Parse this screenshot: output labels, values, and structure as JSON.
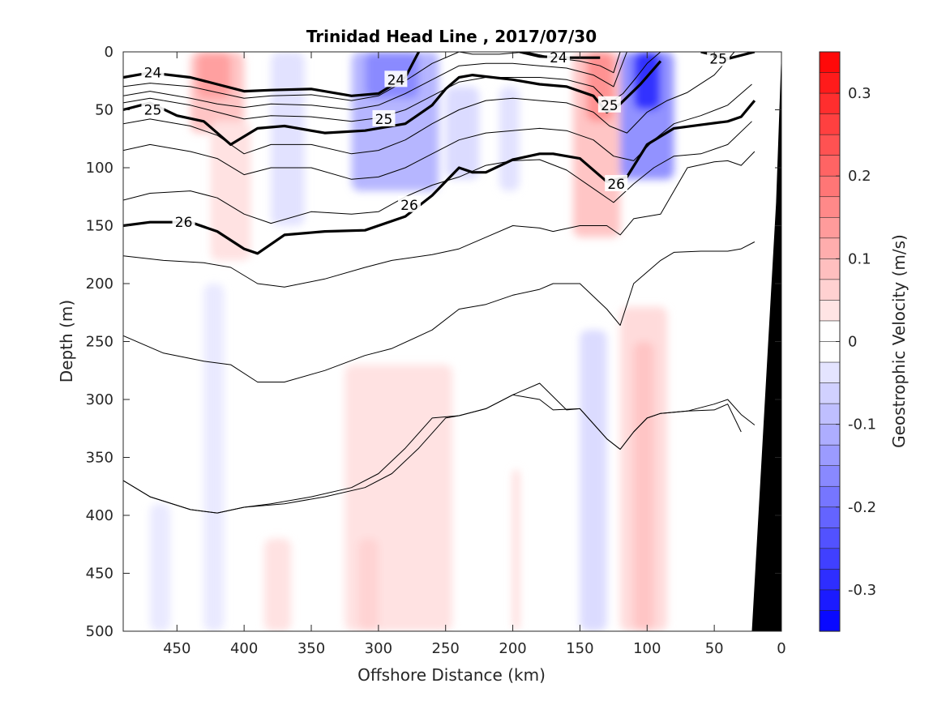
{
  "chart_data": {
    "type": "contour",
    "title": "Trinidad Head Line , 2017/07/30",
    "xlabel": "Offshore Distance (km)",
    "ylabel": "Depth (m)",
    "xlim": [
      490,
      0
    ],
    "x_reversed": true,
    "ylim": [
      0,
      500
    ],
    "y_reversed": true,
    "xticks": [
      "450",
      "400",
      "350",
      "300",
      "250",
      "200",
      "150",
      "100",
      "50",
      "0"
    ],
    "yticks": [
      "0",
      "50",
      "100",
      "150",
      "200",
      "250",
      "300",
      "350",
      "400",
      "450",
      "500"
    ],
    "colorbar": {
      "label": "Geostrophic Velocity (m/s)",
      "range": [
        -0.35,
        0.35
      ],
      "step": 0.025,
      "ticks": [
        "0.3",
        "0.2",
        "0.1",
        "0",
        "-0.1",
        "-0.2",
        "-0.3"
      ],
      "colors": {
        "positive": "#ff0000",
        "negative": "#0000ff",
        "zero": "#ffffff"
      }
    },
    "velocity_patches": [
      {
        "x": [
          440,
          400
        ],
        "depth": [
          0,
          70
        ],
        "velocity": 0.08
      },
      {
        "x": [
          435,
          410
        ],
        "depth": [
          0,
          40
        ],
        "velocity": 0.13
      },
      {
        "x": [
          425,
          395
        ],
        "depth": [
          60,
          180
        ],
        "velocity": 0.04
      },
      {
        "x": [
          380,
          355
        ],
        "depth": [
          0,
          150
        ],
        "velocity": -0.04
      },
      {
        "x": [
          320,
          255
        ],
        "depth": [
          0,
          120
        ],
        "velocity": -0.1
      },
      {
        "x": [
          310,
          270
        ],
        "depth": [
          0,
          40
        ],
        "velocity": -0.16
      },
      {
        "x": [
          250,
          225
        ],
        "depth": [
          30,
          110
        ],
        "velocity": -0.05
      },
      {
        "x": [
          210,
          195
        ],
        "depth": [
          30,
          120
        ],
        "velocity": -0.04
      },
      {
        "x": [
          155,
          120
        ],
        "depth": [
          0,
          160
        ],
        "velocity": 0.08
      },
      {
        "x": [
          145,
          125
        ],
        "depth": [
          0,
          60
        ],
        "velocity": 0.15
      },
      {
        "x": [
          120,
          80
        ],
        "depth": [
          0,
          110
        ],
        "velocity": -0.15
      },
      {
        "x": [
          110,
          90
        ],
        "depth": [
          0,
          50
        ],
        "velocity": -0.28
      },
      {
        "x": [
          470,
          455
        ],
        "depth": [
          390,
          500
        ],
        "velocity": -0.03
      },
      {
        "x": [
          430,
          415
        ],
        "depth": [
          200,
          500
        ],
        "velocity": -0.03
      },
      {
        "x": [
          385,
          365
        ],
        "depth": [
          420,
          500
        ],
        "velocity": 0.04
      },
      {
        "x": [
          325,
          245
        ],
        "depth": [
          270,
          500
        ],
        "velocity": 0.04
      },
      {
        "x": [
          315,
          300
        ],
        "depth": [
          420,
          500
        ],
        "velocity": 0.06
      },
      {
        "x": [
          200,
          195
        ],
        "depth": [
          360,
          500
        ],
        "velocity": 0.05
      },
      {
        "x": [
          150,
          130
        ],
        "depth": [
          240,
          500
        ],
        "velocity": -0.05
      },
      {
        "x": [
          120,
          85
        ],
        "depth": [
          220,
          500
        ],
        "velocity": 0.05
      },
      {
        "x": [
          110,
          95
        ],
        "depth": [
          250,
          500
        ],
        "velocity": 0.08
      }
    ],
    "isopycnals": [
      {
        "level": 24,
        "major": true,
        "x": [
          490,
          470,
          440,
          420,
          400,
          380,
          350,
          320,
          300,
          280,
          270
        ],
        "depth": [
          22,
          18,
          22,
          28,
          34,
          33,
          32,
          38,
          36,
          22,
          0
        ]
      },
      {
        "level": 24,
        "major": true,
        "x": [
          195,
          180,
          160,
          135
        ],
        "depth": [
          0,
          4,
          5,
          5
        ]
      },
      {
        "level": 25,
        "major": true,
        "x": [
          60,
          40,
          20
        ],
        "depth": [
          0,
          6,
          0
        ]
      },
      {
        "level": 25,
        "major": true,
        "x": [
          490,
          470,
          450,
          430,
          410,
          390,
          370,
          340,
          310,
          280,
          260,
          250,
          240,
          230,
          200,
          180,
          160,
          140,
          130,
          120,
          105,
          90
        ],
        "depth": [
          50,
          44,
          55,
          60,
          80,
          66,
          64,
          70,
          68,
          62,
          46,
          32,
          22,
          20,
          24,
          28,
          30,
          38,
          52,
          45,
          28,
          8
        ]
      },
      {
        "level": 26,
        "major": true,
        "x": [
          490,
          470,
          440,
          420,
          400,
          390,
          370,
          340,
          310,
          280,
          260,
          240,
          230,
          220,
          200,
          180,
          170,
          150,
          130,
          115,
          100,
          80,
          60,
          40,
          30,
          20
        ],
        "depth": [
          150,
          147,
          147,
          155,
          170,
          174,
          158,
          155,
          154,
          142,
          124,
          100,
          104,
          104,
          93,
          88,
          88,
          92,
          112,
          108,
          80,
          66,
          63,
          60,
          56,
          42
        ]
      },
      {
        "level": null,
        "major": false,
        "x": [
          490,
          470,
          440,
          420,
          400,
          380,
          350,
          320,
          300,
          280,
          260,
          240,
          230,
          210,
          190,
          170,
          150,
          135,
          125,
          120
        ],
        "depth": [
          30,
          27,
          30,
          35,
          40,
          38,
          37,
          42,
          38,
          25,
          10,
          0,
          2,
          2,
          0,
          5,
          8,
          12,
          18,
          0
        ]
      },
      {
        "level": null,
        "major": false,
        "x": [
          490,
          470,
          440,
          420,
          400,
          380,
          350,
          320,
          300,
          280,
          260,
          240,
          220,
          200,
          180,
          160,
          140,
          125,
          115
        ],
        "depth": [
          38,
          34,
          40,
          45,
          48,
          45,
          46,
          50,
          46,
          36,
          24,
          12,
          10,
          10,
          12,
          14,
          20,
          30,
          0
        ]
      },
      {
        "level": null,
        "major": false,
        "x": [
          490,
          470,
          440,
          420,
          400,
          380,
          350,
          320,
          300,
          280,
          260,
          240,
          220,
          200,
          180,
          160,
          140,
          128,
          118,
          108,
          100,
          90
        ],
        "depth": [
          44,
          40,
          46,
          52,
          58,
          55,
          56,
          60,
          57,
          50,
          38,
          26,
          22,
          22,
          22,
          24,
          30,
          44,
          36,
          22,
          10,
          0
        ]
      },
      {
        "level": null,
        "major": false,
        "x": [
          490,
          470,
          440,
          420,
          400,
          380,
          350,
          320,
          300,
          280,
          260,
          240,
          220,
          200,
          180,
          160,
          140,
          128,
          115,
          100,
          85,
          70,
          50,
          35
        ],
        "depth": [
          62,
          58,
          64,
          72,
          88,
          80,
          80,
          88,
          85,
          76,
          62,
          50,
          42,
          40,
          42,
          44,
          52,
          64,
          70,
          52,
          42,
          35,
          20,
          0
        ]
      },
      {
        "level": null,
        "major": false,
        "x": [
          490,
          470,
          440,
          420,
          400,
          380,
          350,
          320,
          300,
          280,
          260,
          240,
          220,
          200,
          180,
          160,
          140,
          125,
          110,
          95,
          80,
          60,
          40,
          22
        ],
        "depth": [
          85,
          80,
          86,
          92,
          106,
          100,
          100,
          110,
          108,
          100,
          88,
          76,
          70,
          68,
          66,
          68,
          76,
          90,
          94,
          76,
          62,
          55,
          46,
          28
        ]
      },
      {
        "level": null,
        "major": false,
        "x": [
          490,
          470,
          440,
          420,
          400,
          380,
          350,
          320,
          300,
          280,
          260,
          240,
          220,
          200,
          180,
          160,
          140,
          125,
          110,
          95,
          80,
          60,
          40,
          22
        ],
        "depth": [
          128,
          122,
          120,
          126,
          140,
          148,
          138,
          140,
          138,
          125,
          115,
          108,
          98,
          94,
          93,
          102,
          118,
          130,
          114,
          100,
          90,
          88,
          80,
          60
        ]
      },
      {
        "level": null,
        "major": false,
        "x": [
          490,
          460,
          430,
          410,
          390,
          370,
          340,
          310,
          290,
          260,
          240,
          220,
          200,
          180,
          170,
          150,
          130,
          120,
          110,
          90,
          70,
          50,
          40,
          30,
          20
        ],
        "depth": [
          176,
          180,
          182,
          186,
          200,
          203,
          196,
          186,
          180,
          175,
          170,
          160,
          150,
          152,
          155,
          150,
          150,
          158,
          144,
          140,
          100,
          95,
          94,
          98,
          86
        ]
      },
      {
        "level": null,
        "major": false,
        "x": [
          490,
          460,
          430,
          410,
          390,
          370,
          340,
          310,
          290,
          260,
          240,
          220,
          200,
          180,
          170,
          150,
          130,
          120,
          110,
          90,
          80,
          60,
          40,
          30,
          20
        ],
        "depth": [
          245,
          260,
          267,
          270,
          285,
          285,
          275,
          262,
          256,
          240,
          222,
          218,
          210,
          205,
          200,
          200,
          222,
          236,
          200,
          180,
          173,
          172,
          172,
          170,
          164
        ]
      },
      {
        "level": null,
        "major": false,
        "x": [
          490,
          470,
          440,
          420,
          400,
          380,
          350,
          320,
          300,
          280,
          260,
          240,
          220,
          200,
          180,
          170,
          150,
          130,
          120,
          110,
          100,
          90,
          70,
          50,
          40,
          30,
          20
        ],
        "depth": [
          370,
          384,
          395,
          398,
          393,
          390,
          384,
          376,
          364,
          342,
          316,
          314,
          308,
          296,
          300,
          309,
          308,
          334,
          343,
          328,
          316,
          312,
          310,
          304,
          300,
          313,
          322
        ]
      },
      {
        "level": null,
        "major": false,
        "x": [
          490,
          470,
          440,
          420,
          400,
          370,
          340,
          310,
          290,
          270,
          250,
          240,
          220,
          200,
          180,
          160,
          150,
          130,
          120,
          110,
          100,
          90,
          70,
          50,
          40,
          30
        ],
        "depth": [
          370,
          384,
          395,
          398,
          393,
          390,
          384,
          376,
          364,
          342,
          316,
          314,
          308,
          296,
          286,
          309,
          308,
          334,
          343,
          328,
          316,
          312,
          310,
          309,
          304,
          328
        ]
      }
    ],
    "contour_labels": [
      {
        "text": "24",
        "x": 468,
        "depth": 18
      },
      {
        "text": "24",
        "x": 287,
        "depth": 24
      },
      {
        "text": "24",
        "x": 166,
        "depth": 5
      },
      {
        "text": "25",
        "x": 468,
        "depth": 50
      },
      {
        "text": "25",
        "x": 296,
        "depth": 58
      },
      {
        "text": "25",
        "x": 128,
        "depth": 46
      },
      {
        "text": "25",
        "x": 47,
        "depth": 6
      },
      {
        "text": "26",
        "x": 445,
        "depth": 147
      },
      {
        "text": "26",
        "x": 277,
        "depth": 132
      },
      {
        "text": "26",
        "x": 123,
        "depth": 114
      }
    ],
    "shelf": {
      "x": [
        22,
        4,
        0,
        0,
        25
      ],
      "depth": [
        500,
        130,
        0,
        500,
        500
      ],
      "color": "#000000"
    }
  }
}
